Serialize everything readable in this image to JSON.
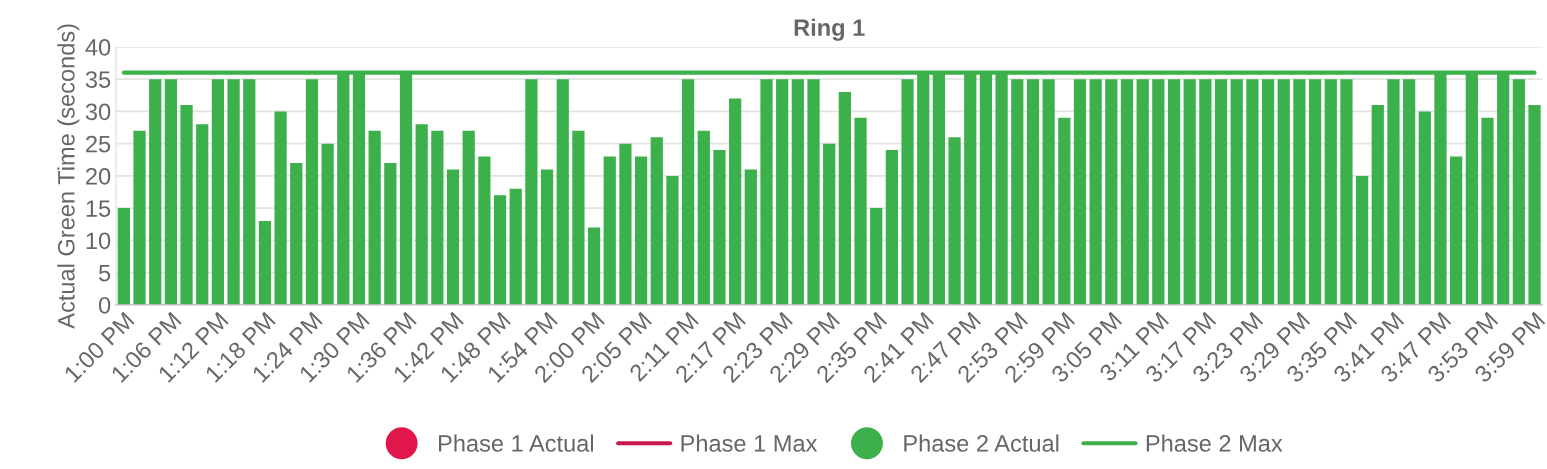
{
  "chart_data": {
    "type": "bar",
    "title": "Ring 1",
    "ylabel": "Actual Green Time (seconds)",
    "categories": [
      "1:00 PM",
      null,
      null,
      "1:06 PM",
      null,
      null,
      "1:12 PM",
      null,
      null,
      "1:18 PM",
      null,
      null,
      "1:24 PM",
      null,
      null,
      "1:30 PM",
      null,
      null,
      "1:36 PM",
      null,
      null,
      "1:42 PM",
      null,
      null,
      "1:48 PM",
      null,
      null,
      "1:54 PM",
      null,
      null,
      "2:00 PM",
      null,
      null,
      "2:05 PM",
      null,
      null,
      "2:11 PM",
      null,
      null,
      "2:17 PM",
      null,
      null,
      "2:23 PM",
      null,
      null,
      "2:29 PM",
      null,
      null,
      "2:35 PM",
      null,
      null,
      "2:41 PM",
      null,
      null,
      "2:47 PM",
      null,
      null,
      "2:53 PM",
      null,
      null,
      "2:59 PM",
      null,
      null,
      "3:05 PM",
      null,
      null,
      "3:11 PM",
      null,
      null,
      "3:17 PM",
      null,
      null,
      "3:23 PM",
      null,
      null,
      "3:29 PM",
      null,
      null,
      "3:35 PM",
      null,
      null,
      "3:41 PM",
      null,
      null,
      "3:47 PM",
      null,
      null,
      "3:53 PM",
      null,
      null,
      "3:59 PM"
    ],
    "series": [
      {
        "name": "Phase 1 Actual",
        "color": "#e0174a",
        "values": [
          null,
          null,
          null,
          null,
          null,
          null,
          null,
          null,
          null,
          null,
          null,
          null,
          null,
          null,
          null,
          null,
          null,
          null,
          null,
          null,
          null,
          null,
          null,
          null,
          null,
          null,
          null,
          null,
          null,
          null,
          null,
          null,
          null,
          null,
          null,
          null,
          null,
          null,
          null,
          null,
          null,
          null,
          null,
          null,
          null,
          null,
          null,
          null,
          null,
          null,
          null,
          null,
          null,
          null,
          null,
          null,
          null,
          null,
          null,
          null,
          null,
          null,
          null,
          null,
          null,
          null,
          null,
          null,
          null,
          null,
          null,
          null,
          null,
          null,
          null,
          null,
          null,
          null,
          null,
          null,
          null,
          null,
          null,
          null,
          null,
          null,
          null,
          null,
          null,
          null,
          null
        ]
      },
      {
        "name": "Phase 1 Max",
        "type": "line",
        "color": "#c8174a",
        "values": [
          null,
          null,
          null,
          null,
          null,
          null,
          null,
          null,
          null,
          null,
          null,
          null,
          null,
          null,
          null,
          null,
          null,
          null,
          null,
          null,
          null,
          null,
          null,
          null,
          null,
          null,
          null,
          null,
          null,
          null,
          null,
          null,
          null,
          null,
          null,
          null,
          null,
          null,
          null,
          null,
          null,
          null,
          null,
          null,
          null,
          null,
          null,
          null,
          null,
          null,
          null,
          null,
          null,
          null,
          null,
          null,
          null,
          null,
          null,
          null,
          null,
          null,
          null,
          null,
          null,
          null,
          null,
          null,
          null,
          null,
          null,
          null,
          null,
          null,
          null,
          null,
          null,
          null,
          null,
          null,
          null,
          null,
          null,
          null,
          null,
          null,
          null,
          null,
          null,
          null,
          null
        ]
      },
      {
        "name": "Phase 2 Actual",
        "color": "#3cb04a",
        "values": [
          15,
          27,
          35,
          35,
          31,
          28,
          35,
          35,
          35,
          13,
          30,
          22,
          35,
          25,
          36,
          36,
          27,
          22,
          36,
          28,
          27,
          21,
          27,
          23,
          17,
          18,
          35,
          21,
          35,
          27,
          12,
          23,
          25,
          23,
          26,
          20,
          35,
          27,
          24,
          32,
          21,
          35,
          35,
          35,
          35,
          25,
          33,
          29,
          15,
          24,
          35,
          36,
          36,
          26,
          36,
          36,
          36,
          35,
          35,
          35,
          29,
          35,
          35,
          35,
          35,
          35,
          35,
          35,
          35,
          35,
          35,
          35,
          35,
          35,
          35,
          35,
          35,
          35,
          35,
          20,
          31,
          35,
          35,
          30,
          36,
          23,
          36,
          29,
          36,
          35,
          31
        ]
      },
      {
        "name": "Phase 2 Max",
        "type": "line",
        "color": "#3cb04a",
        "values": [
          36,
          36,
          36,
          36,
          36,
          36,
          36,
          36,
          36,
          36,
          36,
          36,
          36,
          36,
          36,
          36,
          36,
          36,
          36,
          36,
          36,
          36,
          36,
          36,
          36,
          36,
          36,
          36,
          36,
          36,
          36,
          36,
          36,
          36,
          36,
          36,
          36,
          36,
          36,
          36,
          36,
          36,
          36,
          36,
          36,
          36,
          36,
          36,
          36,
          36,
          36,
          36,
          36,
          36,
          36,
          36,
          36,
          36,
          36,
          36,
          36,
          36,
          36,
          36,
          36,
          36,
          36,
          36,
          36,
          36,
          36,
          36,
          36,
          36,
          36,
          36,
          36,
          36,
          36,
          36,
          36,
          36,
          36,
          36,
          36,
          36,
          36,
          36,
          36,
          36,
          36
        ]
      }
    ],
    "ylim": [
      0,
      40
    ],
    "yticks": [
      0,
      5,
      10,
      15,
      20,
      25,
      30,
      35,
      40
    ],
    "grid": "y",
    "legend": "bottom",
    "marker": "none"
  }
}
